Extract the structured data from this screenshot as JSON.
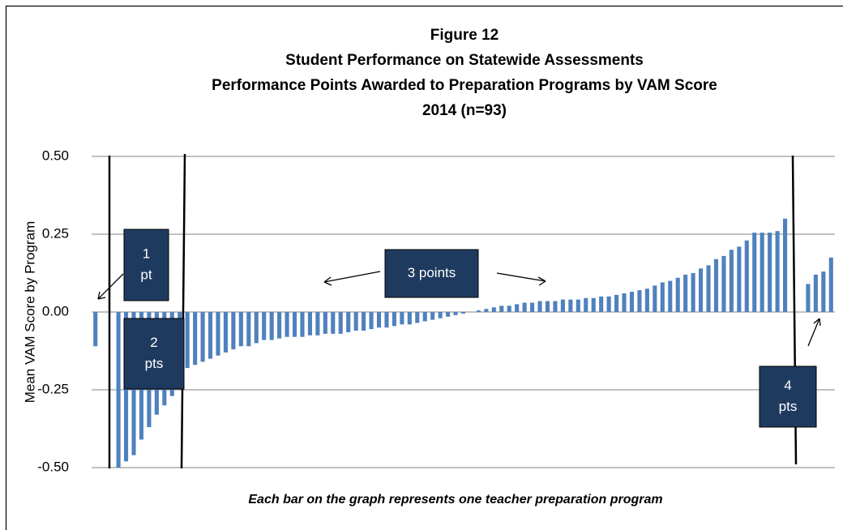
{
  "chart_data": {
    "type": "bar",
    "title": "Figure 12",
    "subtitle": [
      "Student Performance on Statewide Assessments",
      "Performance Points Awarded to Preparation Programs by VAM Score",
      "2014  (n=93)"
    ],
    "y_label": "Mean VAM Score by Program",
    "caption": "Each bar on the graph represents one teacher preparation program",
    "color": "#4f81bd",
    "grid": true,
    "ylim": [
      -0.5,
      0.5
    ],
    "yticks": [
      {
        "value": 0.5,
        "label": "0.50"
      },
      {
        "value": 0.25,
        "label": "0.25"
      },
      {
        "value": 0,
        "label": "0.00"
      },
      {
        "value": -0.25,
        "label": "-0.25"
      },
      {
        "value": -0.5,
        "label": "-0.50"
      }
    ],
    "values": [
      -0.11,
      null,
      null,
      -0.5,
      -0.48,
      -0.46,
      -0.41,
      -0.37,
      -0.33,
      -0.3,
      -0.27,
      -0.19,
      -0.18,
      -0.17,
      -0.16,
      -0.15,
      -0.14,
      -0.13,
      -0.12,
      -0.11,
      -0.11,
      -0.1,
      -0.09,
      -0.09,
      -0.085,
      -0.08,
      -0.08,
      -0.08,
      -0.075,
      -0.075,
      -0.07,
      -0.07,
      -0.07,
      -0.065,
      -0.06,
      -0.06,
      -0.055,
      -0.05,
      -0.05,
      -0.045,
      -0.04,
      -0.04,
      -0.035,
      -0.03,
      -0.025,
      -0.02,
      -0.015,
      -0.01,
      -0.005,
      0,
      0.005,
      0.01,
      0.015,
      0.02,
      0.02,
      0.025,
      0.03,
      0.03,
      0.035,
      0.035,
      0.035,
      0.04,
      0.04,
      0.04,
      0.045,
      0.045,
      0.05,
      0.05,
      0.055,
      0.06,
      0.065,
      0.07,
      0.075,
      0.085,
      0.095,
      0.1,
      0.11,
      0.12,
      0.125,
      0.14,
      0.15,
      0.17,
      0.18,
      0.2,
      0.21,
      0.23,
      0.255,
      0.255,
      0.255,
      0.26,
      0.3,
      null,
      null,
      0.09,
      0.12,
      0.13,
      0.175
    ],
    "annotations": [
      {
        "lines": [
          "1",
          "pt"
        ]
      },
      {
        "lines": [
          "2",
          "pts"
        ]
      },
      {
        "lines": [
          "3 points"
        ]
      },
      {
        "lines": [
          "4",
          "pts"
        ]
      }
    ]
  }
}
